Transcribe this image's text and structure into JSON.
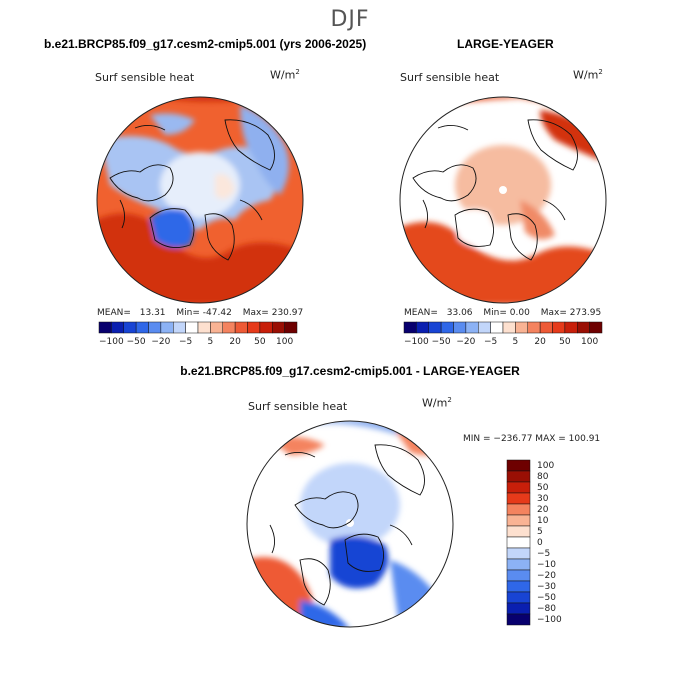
{
  "season": "DJF",
  "panels": [
    {
      "title": "b.e21.BRCP85.f09_g17.cesm2-cmip5.001 (yrs 2006-2025)",
      "variable": "Surf sensible heat",
      "units": "W/m",
      "units_exp": "2",
      "stats": {
        "mean_label": "MEAN=",
        "mean": "13.31",
        "min_label": "Min=",
        "min": "-47.42",
        "max_label": "Max=",
        "max": "230.97"
      }
    },
    {
      "title": "LARGE-YEAGER",
      "variable": "Surf sensible heat",
      "units": "W/m",
      "units_exp": "2",
      "stats": {
        "mean_label": "MEAN=",
        "mean": "33.06",
        "min_label": "Min=",
        "min": "0.00",
        "max_label": "Max=",
        "max": "273.95"
      }
    }
  ],
  "small_colorbar": {
    "colors": [
      "#08006e",
      "#0a1fb0",
      "#1844d4",
      "#2f67e8",
      "#5a8cf0",
      "#8cb2f5",
      "#c2d6fa",
      "#ffffff",
      "#fde0cf",
      "#f9b394",
      "#f4835f",
      "#ee5a36",
      "#e63a1a",
      "#c81f0a",
      "#9a0f04",
      "#6e0000"
    ],
    "tick_labels": [
      "−100",
      "−50",
      "−20",
      "−5",
      "5",
      "20",
      "50",
      "100"
    ]
  },
  "diff_panel": {
    "title": "b.e21.BRCP85.f09_g17.cesm2-cmip5.001 - LARGE-YEAGER",
    "variable": "Surf sensible heat",
    "units": "W/m",
    "units_exp": "2",
    "minmax": "MIN = −236.77  MAX = 100.91"
  },
  "diff_colorbar": {
    "colors": [
      "#6e0000",
      "#9a0f04",
      "#c81f0a",
      "#e63a1a",
      "#f4835f",
      "#f9b394",
      "#fde0cf",
      "#ffffff",
      "#c2d6fa",
      "#8cb2f5",
      "#5a8cf0",
      "#2f67e8",
      "#1844d4",
      "#0a1fb0",
      "#08006e"
    ],
    "labels": [
      "100",
      "80",
      "50",
      "30",
      "20",
      "10",
      "5",
      "0",
      "−5",
      "−10",
      "−20",
      "−30",
      "−50",
      "−80",
      "−100"
    ]
  }
}
